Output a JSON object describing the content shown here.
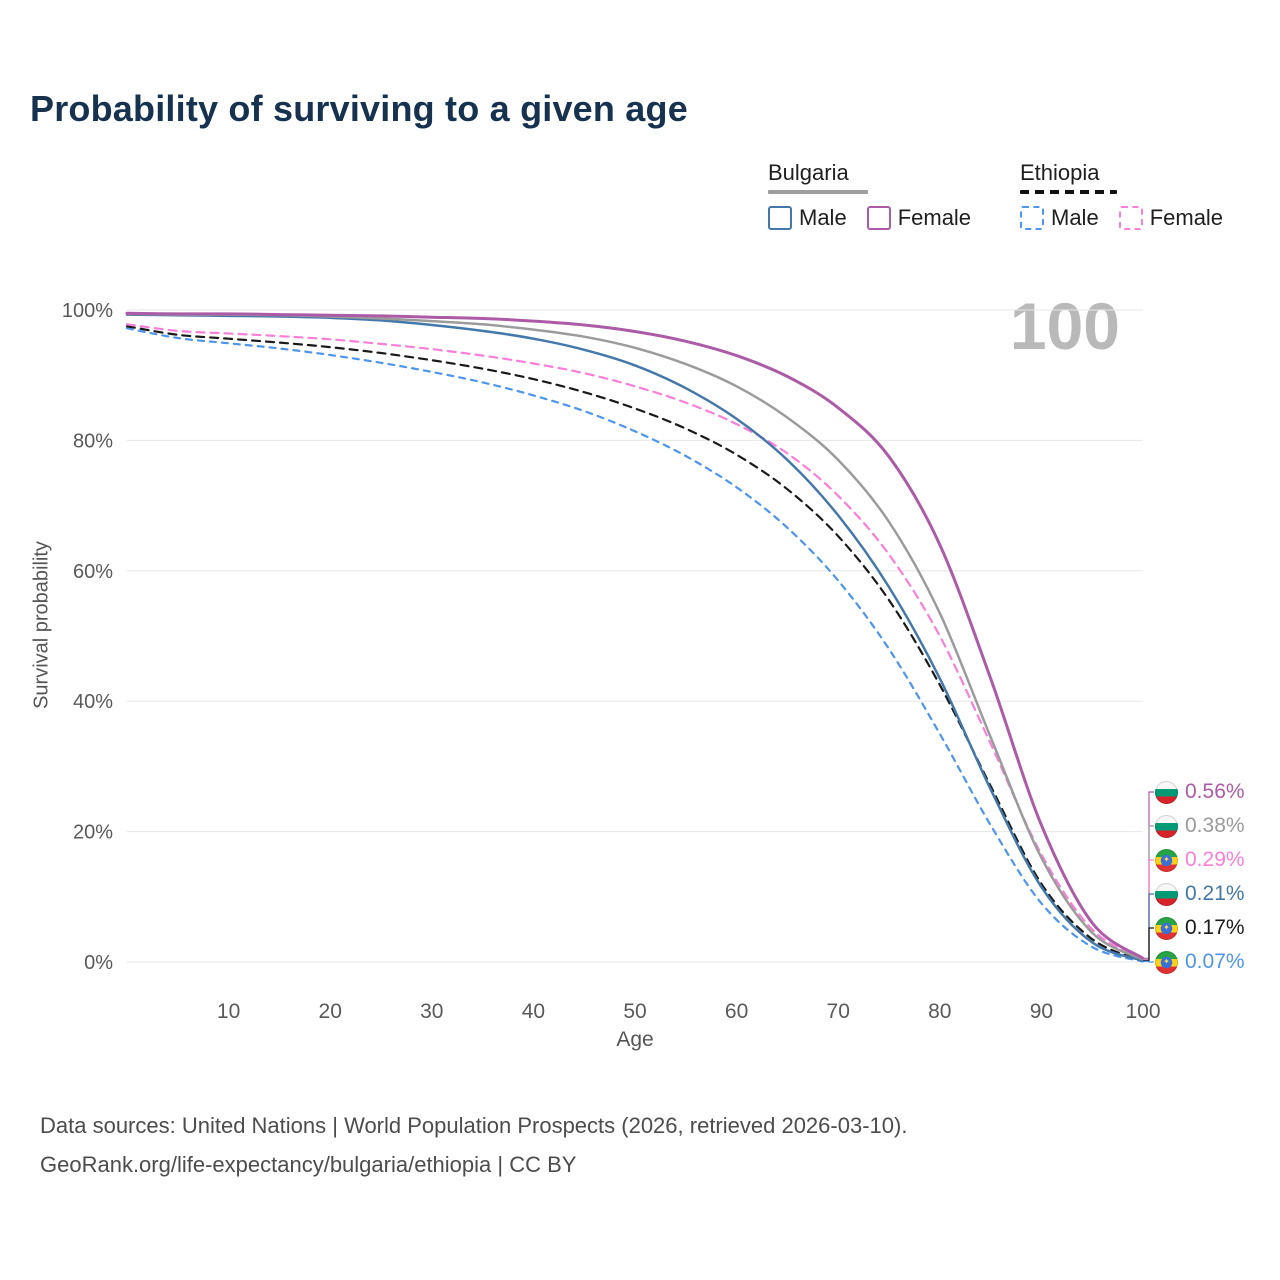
{
  "page": {
    "title": "Probability of surviving to a given age",
    "watermark": "100",
    "footer_line1": "Data sources: United Nations | World Population Prospects (2026, retrieved 2026-03-10).",
    "footer_line2": "GeoRank.org/life-expectancy/bulgaria/ethiopia | CC BY"
  },
  "legend": {
    "bulgaria": {
      "label": "Bulgaria",
      "style": "solid",
      "underline_color": "#9e9e9e",
      "male_label": "Male",
      "female_label": "Female",
      "male_color": "#4477aa",
      "female_color": "#ac5ba6"
    },
    "ethiopia": {
      "label": "Ethiopia",
      "style": "dashed",
      "underline_color": "#111111",
      "male_label": "Male",
      "female_label": "Female",
      "male_color": "#4e95ec",
      "female_color": "#f97fd8"
    }
  },
  "chart_data": {
    "type": "line",
    "title": "Probability of surviving to a given age",
    "xlabel": "Age",
    "ylabel": "Survival probability",
    "xlim": [
      0,
      100
    ],
    "ylim": [
      0,
      100
    ],
    "grid": "horizontal",
    "legend_position": "top-right",
    "xticks": [
      10,
      20,
      30,
      40,
      50,
      60,
      70,
      80,
      90,
      100
    ],
    "yticks": [
      0,
      20,
      40,
      60,
      80,
      100
    ],
    "ytick_suffix": "%",
    "ages": [
      0,
      5,
      10,
      15,
      20,
      25,
      30,
      35,
      40,
      45,
      50,
      55,
      60,
      65,
      70,
      75,
      80,
      85,
      90,
      95,
      100
    ],
    "series": [
      {
        "id": "ethiopia-male",
        "name": "Ethiopia Male",
        "country": "Ethiopia",
        "sex": "male",
        "color": "#4e95ec",
        "dash": "6 6",
        "width": 2.2,
        "values": [
          97.2,
          95.7,
          94.9,
          94.1,
          93.1,
          91.9,
          90.5,
          88.9,
          86.9,
          84.5,
          81.4,
          77.6,
          72.8,
          66.6,
          58.5,
          48.0,
          35.0,
          21.0,
          9.0,
          2.3,
          0.07
        ]
      },
      {
        "id": "ethiopia-total",
        "name": "Ethiopia Both sexes",
        "country": "Ethiopia",
        "sex": "total",
        "color": "#1a1a1a",
        "dash": "8 6",
        "width": 2.2,
        "values": [
          97.5,
          96.2,
          95.6,
          95.0,
          94.3,
          93.4,
          92.3,
          91.0,
          89.4,
          87.4,
          84.9,
          81.8,
          77.8,
          72.5,
          65.3,
          55.5,
          42.5,
          27.0,
          12.0,
          3.5,
          0.17
        ]
      },
      {
        "id": "ethiopia-female",
        "name": "Ethiopia Female",
        "country": "Ethiopia",
        "sex": "female",
        "color": "#f97fd8",
        "dash": "8 6",
        "width": 2.2,
        "values": [
          97.8,
          96.8,
          96.4,
          96.0,
          95.5,
          94.8,
          94.0,
          93.0,
          91.8,
          90.3,
          88.3,
          85.8,
          82.5,
          78.0,
          71.5,
          62.5,
          50.0,
          33.5,
          16.5,
          5.0,
          0.29
        ]
      },
      {
        "id": "bulgaria-male",
        "name": "Bulgaria Male",
        "country": "Bulgaria",
        "sex": "male",
        "color": "#4477aa",
        "dash": null,
        "width": 2.5,
        "values": [
          99.3,
          99.2,
          99.1,
          99.0,
          98.8,
          98.4,
          97.7,
          96.8,
          95.6,
          93.9,
          91.5,
          88.0,
          83.3,
          77.0,
          68.5,
          57.5,
          43.5,
          26.5,
          11.5,
          3.0,
          0.21
        ]
      },
      {
        "id": "bulgaria-total",
        "name": "Bulgaria Both sexes",
        "country": "Bulgaria",
        "sex": "total",
        "color": "#9b9b9b",
        "dash": null,
        "width": 2.5,
        "values": [
          99.4,
          99.3,
          99.3,
          99.2,
          99.0,
          98.7,
          98.3,
          97.8,
          97.0,
          95.9,
          94.2,
          91.7,
          88.3,
          83.5,
          77.0,
          67.5,
          53.5,
          34.5,
          16.0,
          4.5,
          0.38
        ]
      },
      {
        "id": "bulgaria-female",
        "name": "Bulgaria Female",
        "country": "Bulgaria",
        "sex": "female",
        "color": "#ac5ba6",
        "dash": null,
        "width": 3,
        "values": [
          99.5,
          99.4,
          99.4,
          99.3,
          99.2,
          99.1,
          98.9,
          98.7,
          98.3,
          97.7,
          96.7,
          95.2,
          93.0,
          89.8,
          85.0,
          77.5,
          64.0,
          43.5,
          21.0,
          6.0,
          0.56
        ]
      }
    ],
    "end_labels": [
      {
        "value": "0.56%",
        "series": "Bulgaria Female",
        "country": "bulgaria",
        "color": "#ac5ba6",
        "end_pct": 0.56
      },
      {
        "value": "0.38%",
        "series": "Bulgaria Both sexes",
        "country": "bulgaria",
        "color": "#9b9b9b",
        "end_pct": 0.38
      },
      {
        "value": "0.29%",
        "series": "Ethiopia Female",
        "country": "ethiopia",
        "color": "#f97fd8",
        "end_pct": 0.29
      },
      {
        "value": "0.21%",
        "series": "Bulgaria Male",
        "country": "bulgaria",
        "color": "#4477aa",
        "end_pct": 0.21
      },
      {
        "value": "0.17%",
        "series": "Ethiopia Both sexes",
        "country": "ethiopia",
        "color": "#1a1a1a",
        "end_pct": 0.17
      },
      {
        "value": "0.07%",
        "series": "Ethiopia Male",
        "country": "ethiopia",
        "color": "#4e95ec",
        "end_pct": 0.07
      }
    ]
  }
}
